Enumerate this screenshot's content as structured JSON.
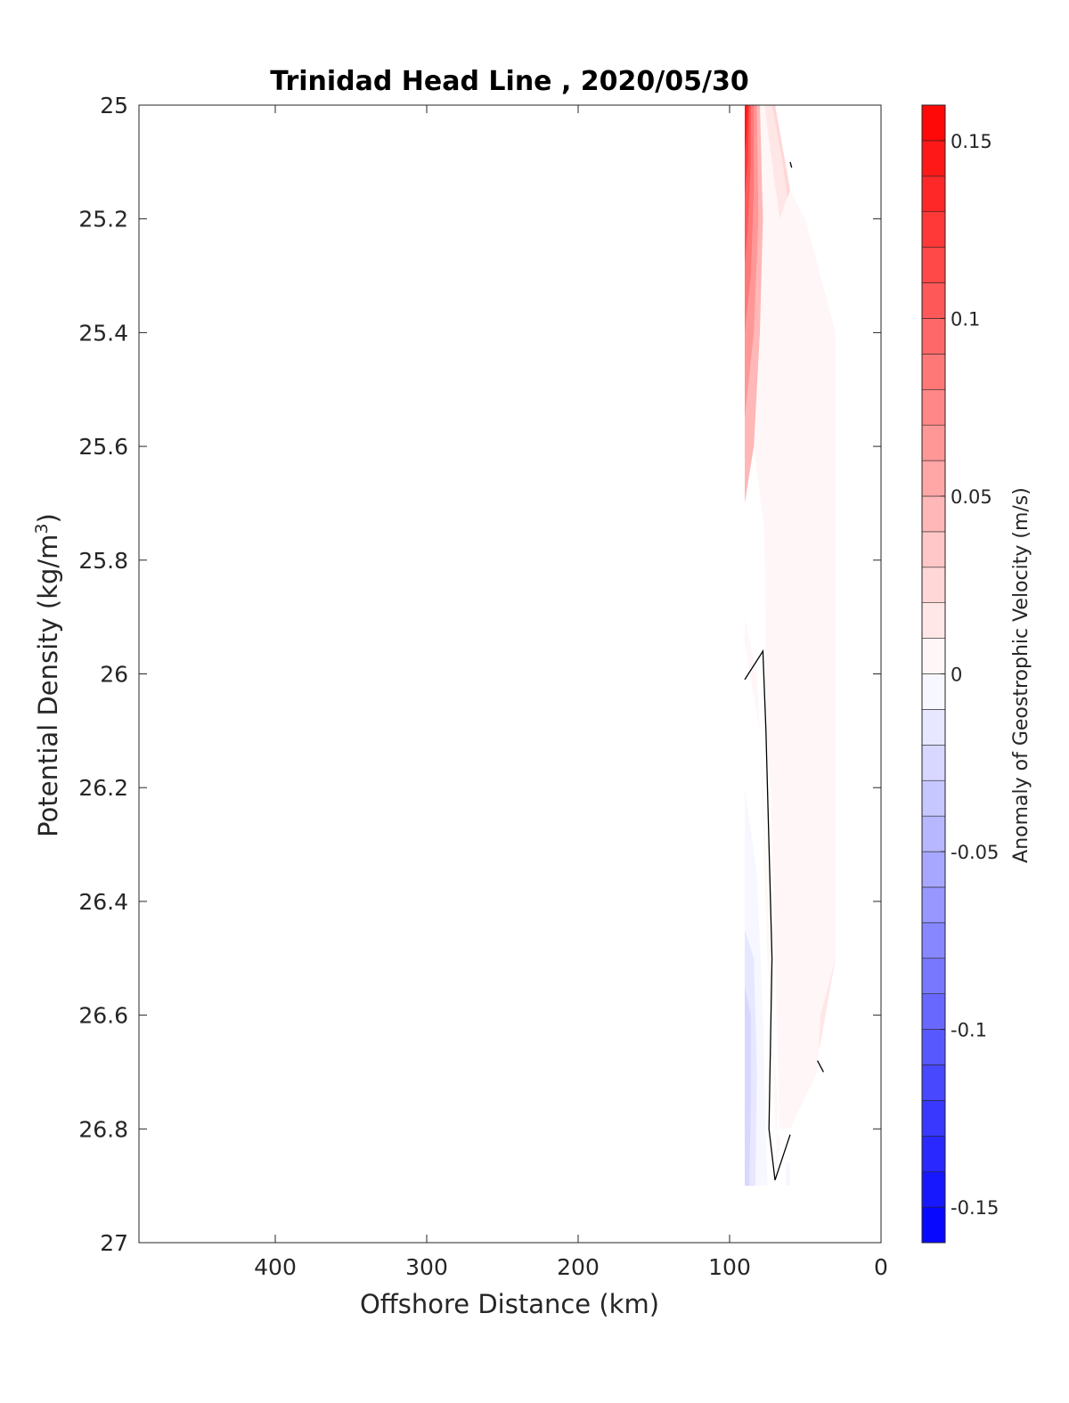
{
  "chart_data": {
    "type": "contour",
    "title": "Trinidad Head Line , 2020/05/30",
    "xlabel": "Offshore Distance (km)",
    "ylabel": "Potential Density (kg/m",
    "ylabel_sup": "3",
    "ylabel_close": ")",
    "xlim": [
      490,
      0
    ],
    "ylim": [
      25,
      27
    ],
    "x_reversed": true,
    "y_reversed": true,
    "xticks": [
      400,
      300,
      200,
      100,
      0
    ],
    "xtick_labels": [
      "400",
      "300",
      "200",
      "100",
      "0"
    ],
    "yticks": [
      25,
      25.2,
      25.4,
      25.6,
      25.8,
      26,
      26.2,
      26.4,
      26.6,
      26.8,
      27
    ],
    "ytick_labels": [
      "25",
      "25.2",
      "25.4",
      "25.6",
      "25.8",
      "26",
      "26.2",
      "26.4",
      "26.6",
      "26.8",
      "27"
    ],
    "colorbar": {
      "label": "Anomaly of Geostrophic Velocity (m/s)",
      "clim": [
        -0.16,
        0.16
      ],
      "levels": 32,
      "ticks": [
        0.15,
        0.1,
        0.05,
        0,
        -0.05,
        -0.1,
        -0.15
      ],
      "tick_labels": [
        "0.15",
        "0.1",
        "0.05",
        "0",
        "-0.05",
        "-0.1",
        "-0.15"
      ],
      "color_max": "#ff0000",
      "color_mid": "#ffffff",
      "color_min": "#0000ff"
    },
    "regions": [
      {
        "level": 0.035,
        "polygon": [
          [
            80,
            25
          ],
          [
            70,
            25
          ],
          [
            58,
            25.18
          ],
          [
            45,
            25.35
          ],
          [
            30,
            25.5
          ],
          [
            30,
            26.1
          ],
          [
            48,
            26.07
          ],
          [
            50,
            25.8
          ],
          [
            55,
            25.5
          ],
          [
            65,
            25.3
          ],
          [
            72,
            25.1
          ]
        ]
      },
      {
        "level": 0.025,
        "polygon": [
          [
            70,
            25
          ],
          [
            58,
            25.18
          ],
          [
            45,
            25.35
          ],
          [
            30,
            25.5
          ],
          [
            30,
            26.5
          ],
          [
            40,
            26.55
          ],
          [
            50,
            26.55
          ],
          [
            56,
            26.5
          ],
          [
            56,
            26.2
          ],
          [
            55,
            25.9
          ],
          [
            60,
            25.5
          ],
          [
            66,
            25.3
          ],
          [
            74,
            25.1
          ],
          [
            80,
            25
          ]
        ]
      },
      {
        "level": 0.015,
        "polygon": [
          [
            90,
            25
          ],
          [
            72,
            25
          ],
          [
            65,
            25.1
          ],
          [
            55,
            25.3
          ],
          [
            32,
            25.45
          ],
          [
            30,
            26.5
          ],
          [
            40,
            26.65
          ],
          [
            45,
            26.7
          ],
          [
            65,
            26.75
          ],
          [
            65,
            26.3
          ],
          [
            67,
            26.0
          ],
          [
            75,
            25.6
          ],
          [
            82,
            25.4
          ],
          [
            90,
            25.3
          ]
        ]
      },
      {
        "level": 0.005,
        "polygon": [
          [
            90,
            25
          ],
          [
            77,
            25
          ],
          [
            67,
            25.2
          ],
          [
            60,
            25.15
          ],
          [
            50,
            25.2
          ],
          [
            30,
            25.4
          ],
          [
            30,
            26.5
          ],
          [
            40,
            26.6
          ],
          [
            42,
            26.7
          ],
          [
            60,
            26.8
          ],
          [
            67,
            26.8
          ],
          [
            70,
            26.5
          ],
          [
            73,
            26.2
          ],
          [
            76,
            26.1
          ],
          [
            77,
            25.75
          ],
          [
            84,
            25.6
          ],
          [
            90,
            25.6
          ],
          [
            90,
            25.9
          ],
          [
            82,
            26.0
          ],
          [
            78,
            26.2
          ],
          [
            73,
            26.5
          ],
          [
            70,
            26.8
          ],
          [
            66,
            26.82
          ],
          [
            70,
            26.88
          ],
          [
            68,
            26.76
          ],
          [
            75,
            26.5
          ],
          [
            80,
            26.1
          ],
          [
            90,
            25.95
          ]
        ]
      },
      {
        "level": 0.045,
        "polygon": [
          [
            88,
            25
          ],
          [
            80,
            25
          ],
          [
            78,
            25.2
          ],
          [
            80,
            25.4
          ],
          [
            84,
            25.6
          ],
          [
            90,
            25.7
          ],
          [
            90,
            25
          ]
        ]
      },
      {
        "level": 0.065,
        "polygon": [
          [
            89,
            25
          ],
          [
            82,
            25
          ],
          [
            81,
            25.2
          ],
          [
            84,
            25.4
          ],
          [
            90,
            25.55
          ],
          [
            90,
            25
          ]
        ]
      },
      {
        "level": 0.085,
        "polygon": [
          [
            90,
            25
          ],
          [
            84,
            25
          ],
          [
            84,
            25.15
          ],
          [
            86,
            25.3
          ],
          [
            90,
            25.4
          ],
          [
            90,
            25
          ]
        ]
      },
      {
        "level": 0.105,
        "polygon": [
          [
            90,
            25
          ],
          [
            86,
            25
          ],
          [
            86,
            25.1
          ],
          [
            88,
            25.22
          ],
          [
            90,
            25.28
          ],
          [
            90,
            25
          ]
        ]
      },
      {
        "level": 0.125,
        "polygon": [
          [
            90,
            25
          ],
          [
            87,
            25
          ],
          [
            88,
            25.1
          ],
          [
            90,
            25.16
          ],
          [
            90,
            25
          ]
        ]
      },
      {
        "level": 0.145,
        "polygon": [
          [
            90,
            25
          ],
          [
            88,
            25
          ],
          [
            89,
            25.06
          ],
          [
            90,
            25.08
          ],
          [
            90,
            25
          ]
        ]
      },
      {
        "level": -0.005,
        "polygon": [
          [
            90,
            26.2
          ],
          [
            82,
            26.35
          ],
          [
            78,
            26.6
          ],
          [
            75,
            26.9
          ],
          [
            90,
            26.9
          ]
        ]
      },
      {
        "level": -0.015,
        "polygon": [
          [
            90,
            26.45
          ],
          [
            84,
            26.5
          ],
          [
            82,
            26.7
          ],
          [
            83,
            26.9
          ],
          [
            90,
            26.9
          ]
        ]
      },
      {
        "level": -0.025,
        "polygon": [
          [
            90,
            26.55
          ],
          [
            86,
            26.6
          ],
          [
            86,
            26.75
          ],
          [
            87,
            26.9
          ],
          [
            90,
            26.9
          ]
        ]
      },
      {
        "level": -0.005,
        "polygon": [
          [
            63,
            26.86
          ],
          [
            60,
            26.86
          ],
          [
            60,
            26.9
          ],
          [
            63,
            26.9
          ]
        ]
      }
    ],
    "zero_contours": [
      [
        [
          90,
          26.01
        ],
        [
          78,
          25.96
        ],
        [
          76,
          26.1
        ],
        [
          72,
          26.5
        ],
        [
          74,
          26.8
        ],
        [
          70,
          26.89
        ],
        [
          60,
          26.81
        ]
      ],
      [
        [
          60,
          25.1
        ],
        [
          59,
          25.11
        ]
      ],
      [
        [
          42,
          26.68
        ],
        [
          38,
          26.7
        ]
      ]
    ]
  }
}
